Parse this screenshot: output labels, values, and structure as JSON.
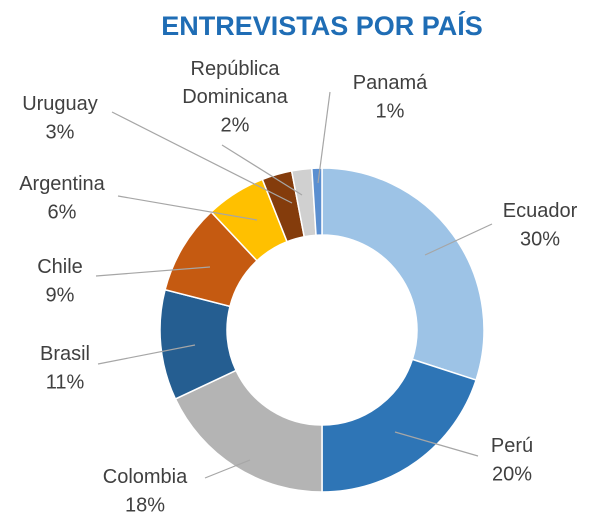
{
  "chart_data": {
    "type": "doughnut",
    "title": "ENTREVISTAS POR PAÍS",
    "categories": [
      "Ecuador",
      "Perú",
      "Colombia",
      "Brasil",
      "Chile",
      "Argentina",
      "Uruguay",
      "República Dominicana",
      "Panamá"
    ],
    "values": [
      30,
      20,
      18,
      11,
      9,
      6,
      3,
      2,
      1
    ],
    "value_labels": [
      "30%",
      "20%",
      "18%",
      "11%",
      "9%",
      "6%",
      "3%",
      "2%",
      "1%"
    ],
    "colors": [
      "#9dc3e6",
      "#2e75b6",
      "#b4b4b4",
      "#255e91",
      "#c55a11",
      "#ffc000",
      "#843c0c",
      "#d0d0d0",
      "#5b8fd0"
    ]
  }
}
